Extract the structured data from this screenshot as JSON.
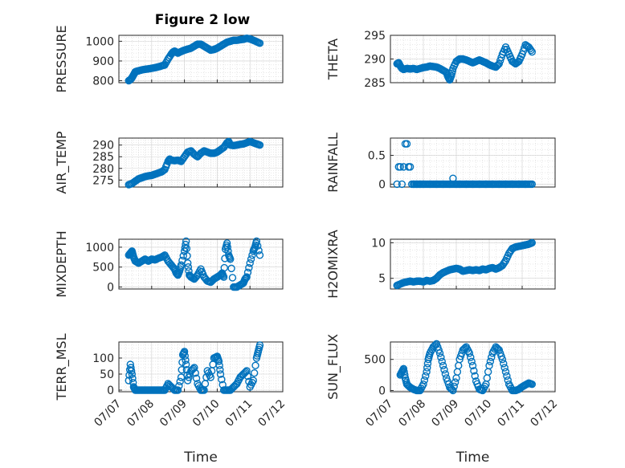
{
  "figure": {
    "title": "Figure 2 low"
  },
  "shared_x": {
    "label": "Time",
    "ticks": [
      "07/07",
      "07/08",
      "07/09",
      "07/10",
      "07/11",
      "07/12"
    ]
  },
  "chart_data": [
    {
      "id": "pressure",
      "type": "scatter",
      "title": "Figure 2 low",
      "ylabel": "PRESSURE",
      "ylim": [
        790,
        1030
      ],
      "yticks": [
        800,
        900,
        1000
      ],
      "xlabel": "",
      "show_xticks": false,
      "x": [
        0.3,
        0.35,
        0.4,
        0.45,
        0.5,
        0.55,
        0.6,
        0.7,
        0.8,
        0.9,
        1.0,
        1.1,
        1.2,
        1.3,
        1.4,
        1.5,
        1.6,
        1.65,
        1.7,
        1.75,
        1.8,
        1.9,
        2.0,
        2.1,
        2.2,
        2.3,
        2.4,
        2.5,
        2.6,
        2.7,
        2.8,
        2.9,
        3.0,
        3.1,
        3.2,
        3.3,
        3.4,
        3.5,
        3.6,
        3.7,
        3.8,
        3.9,
        4.0,
        4.1,
        4.2,
        4.3
      ],
      "y": [
        800,
        805,
        815,
        830,
        845,
        848,
        850,
        855,
        858,
        860,
        863,
        866,
        870,
        875,
        880,
        910,
        935,
        945,
        950,
        945,
        940,
        948,
        955,
        960,
        965,
        975,
        985,
        985,
        975,
        965,
        955,
        958,
        965,
        975,
        985,
        995,
        1000,
        1005,
        1005,
        1008,
        1010,
        1015,
        1012,
        1005,
        998,
        990
      ]
    },
    {
      "id": "theta",
      "type": "scatter",
      "ylabel": "THETA",
      "ylim": [
        285,
        295
      ],
      "yticks": [
        285,
        290,
        295
      ],
      "xlabel": "",
      "show_xticks": false,
      "x": [
        0.2,
        0.25,
        0.3,
        0.35,
        0.4,
        0.5,
        0.6,
        0.7,
        0.8,
        0.9,
        1.0,
        1.1,
        1.2,
        1.3,
        1.4,
        1.5,
        1.6,
        1.7,
        1.75,
        1.8,
        1.85,
        1.9,
        2.0,
        2.1,
        2.2,
        2.3,
        2.4,
        2.5,
        2.6,
        2.7,
        2.8,
        2.9,
        3.0,
        3.1,
        3.2,
        3.3,
        3.4,
        3.5,
        3.6,
        3.7,
        3.8,
        3.9,
        4.0,
        4.1,
        4.2,
        4.3
      ],
      "y": [
        289,
        289.2,
        288.5,
        288,
        287.8,
        288,
        287.9,
        288,
        287.8,
        288,
        288.2,
        288.3,
        288.5,
        288.4,
        288.3,
        288,
        287.6,
        287.2,
        286.2,
        285.6,
        286.5,
        288,
        289.5,
        290,
        290,
        289.8,
        289.5,
        289.2,
        289.5,
        289.8,
        289.5,
        289.2,
        288.8,
        288.5,
        288.3,
        289,
        291,
        292.5,
        291,
        289.5,
        289,
        289.5,
        291,
        293,
        292.5,
        291.5
      ]
    },
    {
      "id": "air_temp",
      "type": "scatter",
      "ylabel": "AIR_TEMP",
      "ylim": [
        272,
        293
      ],
      "yticks": [
        275,
        280,
        285,
        290
      ],
      "xlabel": "",
      "show_xticks": false,
      "x": [
        0.3,
        0.4,
        0.5,
        0.6,
        0.7,
        0.8,
        0.9,
        1.0,
        1.1,
        1.2,
        1.3,
        1.4,
        1.5,
        1.55,
        1.6,
        1.7,
        1.8,
        1.9,
        2.0,
        2.1,
        2.2,
        2.3,
        2.4,
        2.5,
        2.6,
        2.7,
        2.8,
        2.9,
        3.0,
        3.1,
        3.2,
        3.3,
        3.35,
        3.4,
        3.5,
        3.6,
        3.7,
        3.8,
        3.9,
        4.0,
        4.1,
        4.2,
        4.3
      ],
      "y": [
        273,
        273.5,
        274.5,
        275.5,
        276,
        276.5,
        276.8,
        277,
        277.5,
        278,
        278.5,
        279.5,
        283,
        284,
        283.5,
        283.3,
        283.5,
        283,
        285,
        287,
        287.5,
        286,
        285,
        286.5,
        287.5,
        287,
        286.5,
        286.5,
        287,
        288,
        289,
        291,
        291.5,
        290,
        289.8,
        290,
        290.3,
        290.5,
        291,
        291.5,
        291,
        290.5,
        290
      ]
    },
    {
      "id": "rainfall",
      "type": "scatter",
      "ylabel": "RAINFALL",
      "ylim": [
        -0.05,
        0.8
      ],
      "yticks": [
        0,
        0.5
      ],
      "xlabel": "",
      "show_xticks": false,
      "x": [
        0.2,
        0.25,
        0.3,
        0.35,
        0.4,
        0.45,
        0.5,
        0.55,
        0.6,
        0.65,
        0.7,
        0.8,
        0.9,
        1.0,
        1.2,
        1.4,
        1.6,
        1.8,
        1.9,
        2.0,
        2.1,
        2.3,
        2.5,
        2.7,
        2.9,
        3.1,
        3.3,
        3.5,
        3.7,
        3.9,
        4.1,
        4.3
      ],
      "y": [
        0,
        0.3,
        0.3,
        0,
        0.3,
        0.7,
        0.7,
        0.3,
        0.3,
        0,
        0,
        0,
        0,
        0,
        0,
        0,
        0,
        0,
        0.1,
        0,
        0,
        0,
        0,
        0,
        0,
        0,
        0,
        0,
        0,
        0,
        0,
        0
      ]
    },
    {
      "id": "mixdepth",
      "type": "scatter",
      "ylabel": "MIXDEPTH",
      "ylim": [
        -50,
        1200
      ],
      "yticks": [
        0,
        500,
        1000
      ],
      "xlabel": "",
      "show_xticks": false,
      "x": [
        0.3,
        0.35,
        0.4,
        0.45,
        0.5,
        0.6,
        0.7,
        0.8,
        0.9,
        1.0,
        1.1,
        1.2,
        1.3,
        1.4,
        1.5,
        1.6,
        1.7,
        1.75,
        1.8,
        1.85,
        1.9,
        2.0,
        2.05,
        2.1,
        2.15,
        2.2,
        2.3,
        2.4,
        2.5,
        2.6,
        2.7,
        2.8,
        2.9,
        3.0,
        3.1,
        3.15,
        3.2,
        3.25,
        3.3,
        3.35,
        3.4,
        3.5,
        3.6,
        3.7,
        3.8,
        3.85,
        3.9,
        4.0,
        4.1,
        4.15,
        4.2,
        4.3
      ],
      "y": [
        800,
        850,
        900,
        750,
        650,
        600,
        650,
        700,
        650,
        700,
        680,
        720,
        750,
        800,
        650,
        550,
        450,
        350,
        300,
        400,
        550,
        900,
        1150,
        600,
        300,
        250,
        200,
        300,
        450,
        250,
        150,
        120,
        200,
        250,
        300,
        350,
        250,
        950,
        1100,
        800,
        700,
        0,
        0,
        50,
        100,
        200,
        250,
        600,
        900,
        1000,
        1150,
        800
      ]
    },
    {
      "id": "h2omixra",
      "type": "scatter",
      "ylabel": "H2OMIXRA",
      "ylim": [
        3.5,
        10.5
      ],
      "yticks": [
        5,
        10
      ],
      "xlabel": "",
      "show_xticks": false,
      "x": [
        0.2,
        0.3,
        0.4,
        0.5,
        0.6,
        0.7,
        0.8,
        0.9,
        1.0,
        1.1,
        1.2,
        1.3,
        1.4,
        1.5,
        1.6,
        1.7,
        1.8,
        1.9,
        2.0,
        2.1,
        2.2,
        2.3,
        2.4,
        2.5,
        2.6,
        2.7,
        2.8,
        2.9,
        3.0,
        3.1,
        3.2,
        3.3,
        3.4,
        3.5,
        3.6,
        3.7,
        3.8,
        3.9,
        4.0,
        4.1,
        4.2,
        4.3
      ],
      "y": [
        4,
        4.2,
        4.4,
        4.5,
        4.6,
        4.5,
        4.6,
        4.6,
        4.5,
        4.7,
        4.6,
        4.7,
        5,
        5.5,
        5.8,
        6,
        6.2,
        6.3,
        6.4,
        6.3,
        6,
        6.1,
        6.2,
        6.1,
        6.2,
        6.1,
        6.3,
        6.2,
        6.4,
        6.5,
        6.3,
        6.5,
        6.8,
        7.5,
        8.5,
        9.2,
        9.4,
        9.5,
        9.6,
        9.7,
        9.8,
        10
      ]
    },
    {
      "id": "terr_msl",
      "type": "scatter",
      "ylabel": "TERR_MSL",
      "ylim": [
        -5,
        150
      ],
      "yticks": [
        0,
        50,
        100
      ],
      "xlabel": "Time",
      "show_xticks": true,
      "x": [
        0.3,
        0.35,
        0.4,
        0.45,
        0.5,
        0.6,
        0.7,
        0.8,
        0.9,
        1.0,
        1.1,
        1.2,
        1.3,
        1.4,
        1.5,
        1.6,
        1.7,
        1.8,
        1.9,
        1.95,
        2.0,
        2.05,
        2.1,
        2.2,
        2.3,
        2.4,
        2.5,
        2.6,
        2.7,
        2.8,
        2.9,
        3.0,
        3.05,
        3.1,
        3.2,
        3.3,
        3.4,
        3.5,
        3.6,
        3.7,
        3.8,
        3.9,
        4.0,
        4.1,
        4.2,
        4.25,
        4.3
      ],
      "y": [
        30,
        80,
        50,
        10,
        0,
        0,
        0,
        0,
        0,
        0,
        0,
        0,
        0,
        0,
        20,
        10,
        0,
        0,
        40,
        110,
        120,
        80,
        30,
        60,
        70,
        20,
        0,
        0,
        60,
        40,
        100,
        105,
        90,
        50,
        0,
        0,
        0,
        10,
        20,
        40,
        50,
        60,
        10,
        30,
        100,
        120,
        140
      ]
    },
    {
      "id": "sun_flux",
      "type": "scatter",
      "ylabel": "SUN_FLUX",
      "ylim": [
        -20,
        780
      ],
      "yticks": [
        0,
        500
      ],
      "xlabel": "Time",
      "show_xticks": true,
      "x": [
        0.3,
        0.35,
        0.4,
        0.45,
        0.5,
        0.6,
        0.7,
        0.8,
        0.9,
        1.0,
        1.1,
        1.15,
        1.2,
        1.3,
        1.4,
        1.5,
        1.6,
        1.7,
        1.8,
        1.9,
        2.0,
        2.1,
        2.2,
        2.3,
        2.4,
        2.5,
        2.6,
        2.7,
        2.8,
        2.9,
        3.0,
        3.1,
        3.2,
        3.3,
        3.4,
        3.5,
        3.6,
        3.7,
        3.8,
        3.9,
        4.0,
        4.1,
        4.2,
        4.3
      ],
      "y": [
        250,
        300,
        350,
        200,
        100,
        50,
        20,
        0,
        0,
        100,
        300,
        500,
        600,
        700,
        750,
        600,
        400,
        200,
        50,
        0,
        200,
        500,
        650,
        700,
        600,
        400,
        150,
        20,
        0,
        100,
        400,
        600,
        700,
        650,
        500,
        300,
        100,
        0,
        0,
        20,
        60,
        90,
        120,
        100
      ]
    }
  ]
}
